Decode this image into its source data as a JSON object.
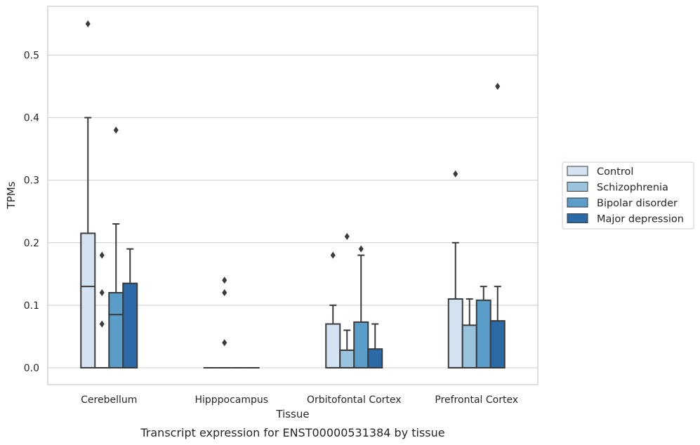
{
  "chart_data": {
    "type": "box",
    "title": "",
    "caption": "Transcript expression for ENST00000531384 by tissue",
    "xlabel": "Tissue",
    "ylabel": "TPMs",
    "ylim": [
      -0.027,
      0.578
    ],
    "yticks": [
      0.0,
      0.1,
      0.2,
      0.3,
      0.4,
      0.5
    ],
    "ytick_labels": [
      "0.0",
      "0.1",
      "0.2",
      "0.3",
      "0.4",
      "0.5"
    ],
    "grid": "horizontal",
    "legend_position": "right",
    "categories": [
      "Cerebellum",
      "Hipppocampus",
      "Orbitofontal Cortex",
      "Prefrontal Cortex"
    ],
    "series": [
      {
        "name": "Control",
        "color": "#d4e3f1",
        "boxes": [
          {
            "q1": 0.0,
            "median": 0.13,
            "q3": 0.215,
            "whisker_low": 0.0,
            "whisker_high": 0.4,
            "outliers": [
              0.55
            ]
          },
          {
            "q1": 0.0,
            "median": 0.0,
            "q3": 0.0,
            "whisker_low": 0.0,
            "whisker_high": 0.0,
            "outliers": []
          },
          {
            "q1": 0.0,
            "median": 0.0,
            "q3": 0.07,
            "whisker_low": 0.0,
            "whisker_high": 0.1,
            "outliers": [
              0.18
            ]
          },
          {
            "q1": 0.0,
            "median": 0.0,
            "q3": 0.11,
            "whisker_low": 0.0,
            "whisker_high": 0.2,
            "outliers": [
              0.31
            ]
          }
        ]
      },
      {
        "name": "Schizophrenia",
        "color": "#9ac3dd",
        "boxes": [
          {
            "q1": 0.0,
            "median": 0.0,
            "q3": 0.0,
            "whisker_low": 0.0,
            "whisker_high": 0.0,
            "outliers": [
              0.07,
              0.12,
              0.18
            ]
          },
          {
            "q1": 0.0,
            "median": 0.0,
            "q3": 0.0,
            "whisker_low": 0.0,
            "whisker_high": 0.0,
            "outliers": [
              0.04,
              0.12,
              0.14
            ]
          },
          {
            "q1": 0.0,
            "median": 0.0,
            "q3": 0.028,
            "whisker_low": 0.0,
            "whisker_high": 0.06,
            "outliers": [
              0.21
            ]
          },
          {
            "q1": 0.0,
            "median": 0.0,
            "q3": 0.068,
            "whisker_low": 0.0,
            "whisker_high": 0.11,
            "outliers": []
          }
        ]
      },
      {
        "name": "Bipolar disorder",
        "color": "#5a9dc9",
        "boxes": [
          {
            "q1": 0.0,
            "median": 0.085,
            "q3": 0.12,
            "whisker_low": 0.0,
            "whisker_high": 0.23,
            "outliers": [
              0.38
            ]
          },
          {
            "q1": 0.0,
            "median": 0.0,
            "q3": 0.0,
            "whisker_low": 0.0,
            "whisker_high": 0.0,
            "outliers": []
          },
          {
            "q1": 0.0,
            "median": 0.0,
            "q3": 0.073,
            "whisker_low": 0.0,
            "whisker_high": 0.18,
            "outliers": [
              0.19
            ]
          },
          {
            "q1": 0.0,
            "median": 0.0,
            "q3": 0.108,
            "whisker_low": 0.0,
            "whisker_high": 0.13,
            "outliers": []
          }
        ]
      },
      {
        "name": "Major depression",
        "color": "#2b6aa6",
        "boxes": [
          {
            "q1": 0.0,
            "median": 0.0,
            "q3": 0.135,
            "whisker_low": 0.0,
            "whisker_high": 0.19,
            "outliers": []
          },
          {
            "q1": 0.0,
            "median": 0.0,
            "q3": 0.0,
            "whisker_low": 0.0,
            "whisker_high": 0.0,
            "outliers": []
          },
          {
            "q1": 0.0,
            "median": 0.0,
            "q3": 0.03,
            "whisker_low": 0.0,
            "whisker_high": 0.07,
            "outliers": []
          },
          {
            "q1": 0.0,
            "median": 0.0,
            "q3": 0.075,
            "whisker_low": 0.0,
            "whisker_high": 0.13,
            "outliers": [
              0.45
            ]
          }
        ]
      }
    ]
  }
}
